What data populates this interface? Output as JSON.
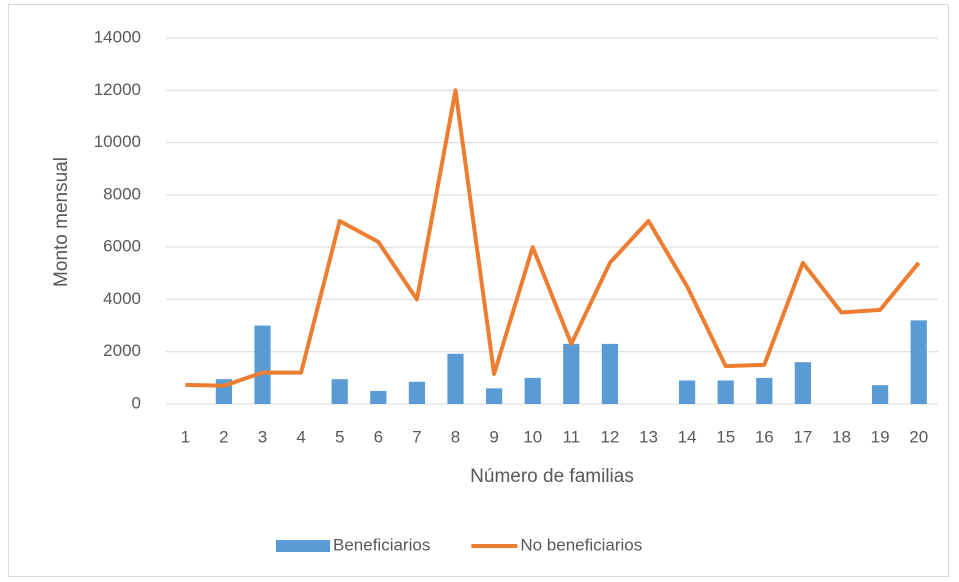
{
  "chart_data": {
    "type": "bar",
    "x_label": "Número de familias",
    "y_label": "Monto mensual",
    "categories": [
      "1",
      "2",
      "3",
      "4",
      "5",
      "6",
      "7",
      "8",
      "9",
      "10",
      "11",
      "12",
      "13",
      "14",
      "15",
      "16",
      "17",
      "18",
      "19",
      "20"
    ],
    "series": [
      {
        "name": "Beneficiarios",
        "type": "bar",
        "color": "#5b9bd5",
        "values": [
          0,
          950,
          3000,
          0,
          950,
          500,
          850,
          1920,
          600,
          1000,
          2300,
          2300,
          0,
          900,
          900,
          1000,
          1600,
          0,
          720,
          3200
        ]
      },
      {
        "name": "No beneficiarios",
        "type": "line",
        "color": "#ed7d31",
        "values": [
          730,
          700,
          1200,
          1200,
          7000,
          6200,
          4000,
          12000,
          1150,
          6000,
          2300,
          5400,
          7000,
          4500,
          1450,
          1500,
          5400,
          3500,
          3600,
          5400
        ]
      }
    ],
    "ylim": [
      0,
      14000
    ],
    "yticks": [
      0,
      2000,
      4000,
      6000,
      8000,
      10000,
      12000,
      14000
    ],
    "grid": true,
    "legend": "bottom"
  }
}
